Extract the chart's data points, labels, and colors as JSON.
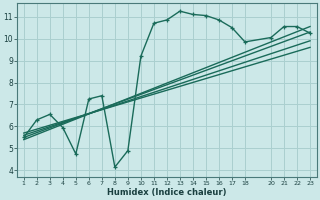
{
  "xlabel": "Humidex (Indice chaleur)",
  "background_color": "#cce8e8",
  "grid_color": "#aacfcf",
  "line_color": "#1a6b5a",
  "xlim": [
    0.5,
    23.5
  ],
  "ylim": [
    3.7,
    11.6
  ],
  "xticks": [
    1,
    2,
    3,
    4,
    5,
    6,
    7,
    8,
    9,
    10,
    11,
    12,
    13,
    14,
    15,
    16,
    17,
    18,
    20,
    21,
    22,
    23
  ],
  "yticks": [
    4,
    5,
    6,
    7,
    8,
    9,
    10,
    11
  ],
  "main_x": [
    1,
    2,
    3,
    4,
    5,
    6,
    7,
    8,
    9,
    10,
    11,
    12,
    13,
    14,
    15,
    16,
    17,
    18,
    20,
    21,
    22,
    23
  ],
  "main_y": [
    5.5,
    6.3,
    6.55,
    5.95,
    4.75,
    7.25,
    7.4,
    4.15,
    4.9,
    9.2,
    10.7,
    10.85,
    11.25,
    11.1,
    11.05,
    10.85,
    10.5,
    9.85,
    10.05,
    10.55,
    10.55,
    10.25
  ],
  "trend1_x": [
    1,
    23
  ],
  "trend1_y": [
    5.5,
    10.3
  ],
  "trend2_x": [
    1,
    23
  ],
  "trend2_y": [
    5.6,
    9.9
  ],
  "trend3_x": [
    1,
    23
  ],
  "trend3_y": [
    5.7,
    9.6
  ],
  "trend4_x": [
    1,
    23
  ],
  "trend4_y": [
    5.4,
    10.55
  ],
  "marker_size": 3.5,
  "line_width": 1.0
}
